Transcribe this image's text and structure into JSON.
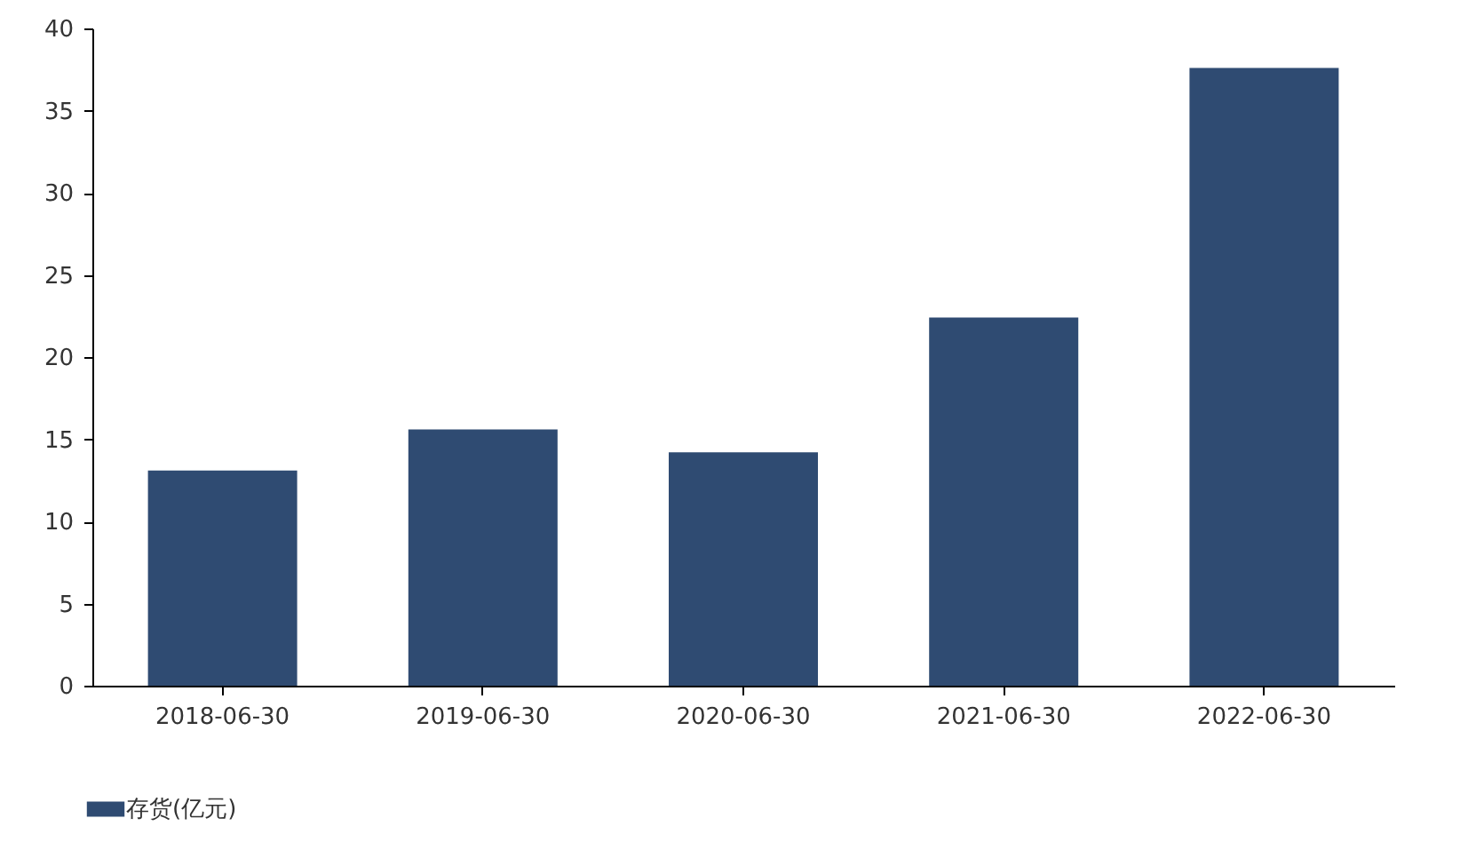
{
  "chart_data": {
    "type": "bar",
    "categories": [
      "2018-06-30",
      "2019-06-30",
      "2020-06-30",
      "2021-06-30",
      "2022-06-30"
    ],
    "series": [
      {
        "name": "存货(亿元)",
        "color": "#2f4b72",
        "values": [
          13.1,
          15.6,
          14.2,
          22.4,
          37.6
        ]
      }
    ],
    "ylim": [
      0,
      40
    ],
    "yticks": [
      0,
      5,
      10,
      15,
      20,
      25,
      30,
      35,
      40
    ],
    "grid": false,
    "legend": "bottom"
  }
}
